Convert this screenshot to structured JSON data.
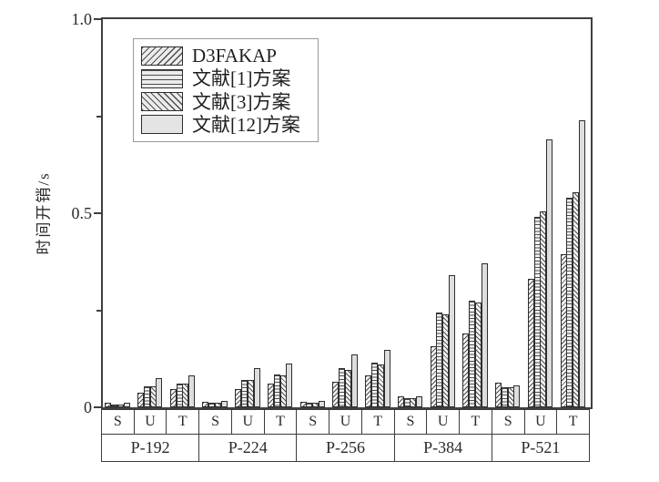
{
  "chart_data": {
    "type": "bar",
    "title": "",
    "ylabel": "时间开销/s",
    "ylim": [
      0,
      1.0
    ],
    "yticks": [
      0,
      0.5,
      1.0
    ],
    "ytick_labels": [
      "0",
      "0.5",
      "1.0"
    ],
    "minor_yticks": [
      0.25,
      0.75
    ],
    "grid": false,
    "legend_position": "upper-left",
    "groups": [
      "P-192",
      "P-224",
      "P-256",
      "P-384",
      "P-521"
    ],
    "subgroups": [
      "S",
      "U",
      "T"
    ],
    "value_order": "P-192:S,U,T then P-224:S,U,T then P-256 then P-384 then P-521",
    "series": [
      {
        "name": "D3FAKAP",
        "pattern": "diagonal-up-hatch",
        "values": [
          0.012,
          0.038,
          0.046,
          0.014,
          0.048,
          0.06,
          0.015,
          0.066,
          0.082,
          0.029,
          0.158,
          0.19,
          0.064,
          0.33,
          0.395
        ]
      },
      {
        "name": "文献[1]方案",
        "pattern": "horizontal-lines",
        "values": [
          0.008,
          0.054,
          0.062,
          0.012,
          0.07,
          0.085,
          0.012,
          0.1,
          0.115,
          0.024,
          0.245,
          0.275,
          0.052,
          0.49,
          0.54
        ]
      },
      {
        "name": "文献[3]方案",
        "pattern": "diagonal-down-hatch",
        "values": [
          0.008,
          0.054,
          0.062,
          0.012,
          0.07,
          0.082,
          0.011,
          0.097,
          0.111,
          0.024,
          0.24,
          0.27,
          0.052,
          0.505,
          0.555
        ]
      },
      {
        "name": "文献[12]方案",
        "pattern": "solid-light-gray",
        "values": [
          0.012,
          0.075,
          0.083,
          0.016,
          0.1,
          0.112,
          0.017,
          0.137,
          0.148,
          0.028,
          0.34,
          0.37,
          0.056,
          0.69,
          0.74
        ]
      }
    ],
    "colors": {
      "background": "#ffffff",
      "axis": "#3f3f3f",
      "bar_outline": "#2e2e2e",
      "hatch_line": "#4d4d4d",
      "solid_bar_fill": "#dedede"
    }
  }
}
